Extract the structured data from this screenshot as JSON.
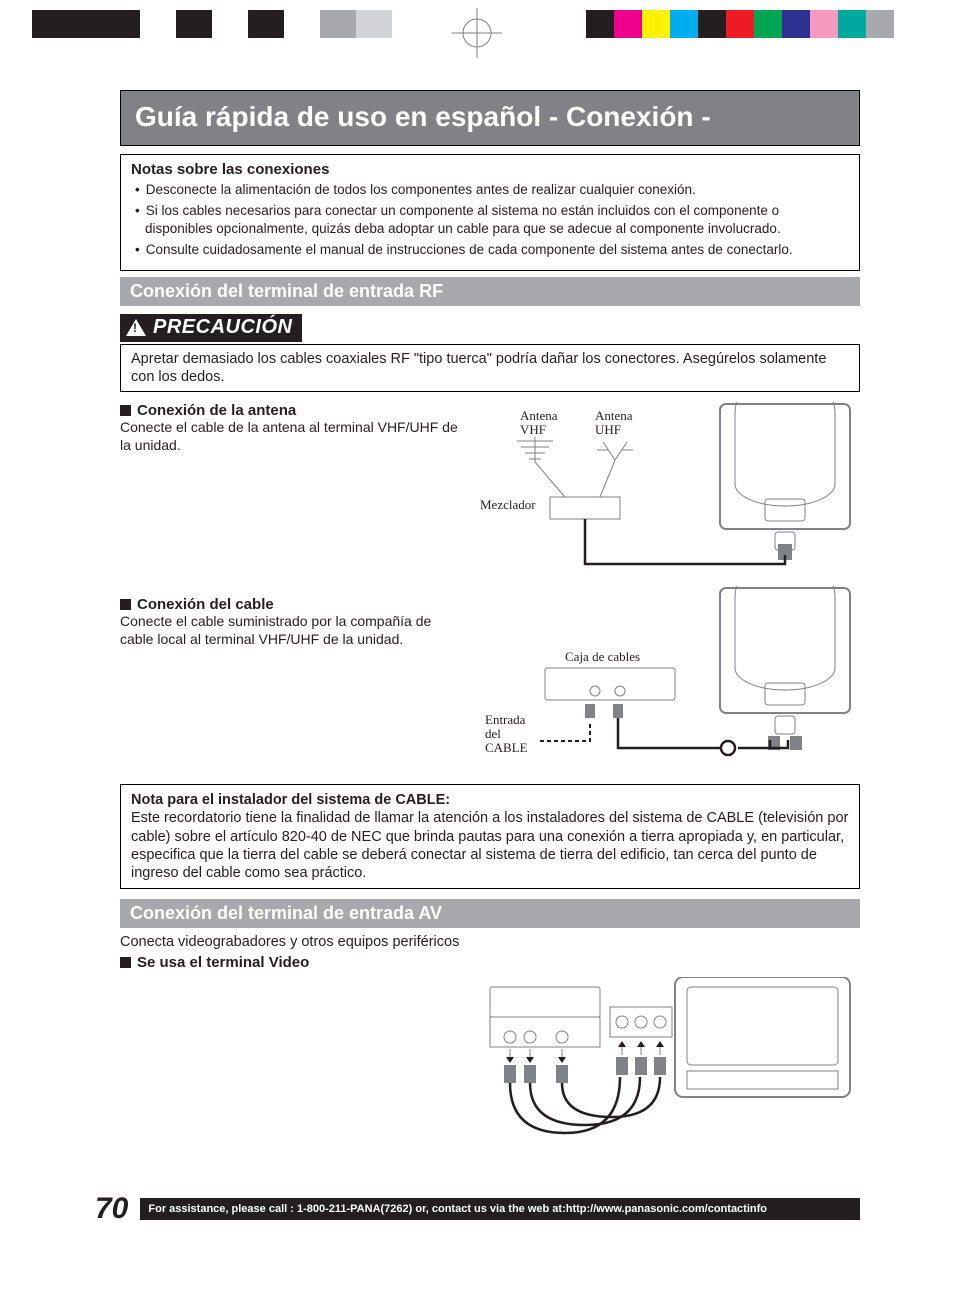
{
  "registration": {
    "left_block_colors": [
      "#231f20",
      "#231f20",
      "#231f20",
      "#ffffff",
      "#231f20",
      "#ffffff",
      "#231f20",
      "#ffffff",
      "#a7a9ac",
      "#d1d3d4"
    ],
    "right_block_colors": [
      "#231f20",
      "#ec008c",
      "#fff200",
      "#00aeef",
      "#231f20",
      "#ed1c24",
      "#00a651",
      "#2e3192",
      "#f49ac1",
      "#00a99d",
      "#a7a9ac"
    ]
  },
  "title": "Guía rápida de uso en español - Conexión -",
  "notes": {
    "heading": "Notas sobre las conexiones",
    "items": [
      "Desconecte la alimentación de todos los componentes antes de realizar cualquier conexión.",
      "Si los cables necesarios para conectar un componente al sistema no están incluidos con el componente o disponibles opcionalmente, quizás deba adoptar un cable para que se adecue al componente involucrado.",
      "Consulte cuidadosamente el manual de instrucciones de cada componente del sistema antes de conectarlo."
    ]
  },
  "section_rf": {
    "bar": "Conexión del terminal de entrada RF",
    "precaution_label": "PRECAUCIÓN",
    "precaution_text": "Apretar demasiado los cables coaxiales RF \"tipo tuerca\" podría dañar los conectores. Asegúrelos solamente con los dedos.",
    "antenna": {
      "heading": "Conexión de la antena",
      "body": "Conecte el cable de la antena al terminal VHF/UHF de la unidad.",
      "labels": {
        "vhf": "Antena\nVHF",
        "uhf": "Antena\nUHF",
        "mixer": "Mezclador"
      }
    },
    "cable": {
      "heading": "Conexión del cable",
      "body": "Conecte el cable suministrado por la compañía de cable local al terminal VHF/UHF de la unidad.",
      "labels": {
        "box": "Caja de cables",
        "in": "Entrada\ndel\nCABLE"
      }
    },
    "installer_note": {
      "bold": "Nota  para el instalador del sistema de CABLE:",
      "body": "Este recordatorio tiene la finalidad de llamar la atención a los instaladores del sistema de CABLE (televisión por cable) sobre el artículo 820-40 de NEC que brinda pautas para una conexión a tierra apropiada y, en particular, especifica que la tierra del cable se deberá conectar al sistema de tierra del edificio, tan cerca del punto de ingreso del cable como sea práctico."
    }
  },
  "section_av": {
    "bar": "Conexión del terminal de entrada AV",
    "intro": "Conecta videograbadores y otros equipos periféricos",
    "video_heading": "Se usa el terminal Video"
  },
  "footer": {
    "page": "70",
    "text": "For assistance, please call : 1-800-211-PANA(7262) or, contact us via the web at:http://www.panasonic.com/contactinfo"
  },
  "colors": {
    "banner_bg": "#808285",
    "section_bg": "#a7a9ac",
    "black": "#231f20"
  }
}
